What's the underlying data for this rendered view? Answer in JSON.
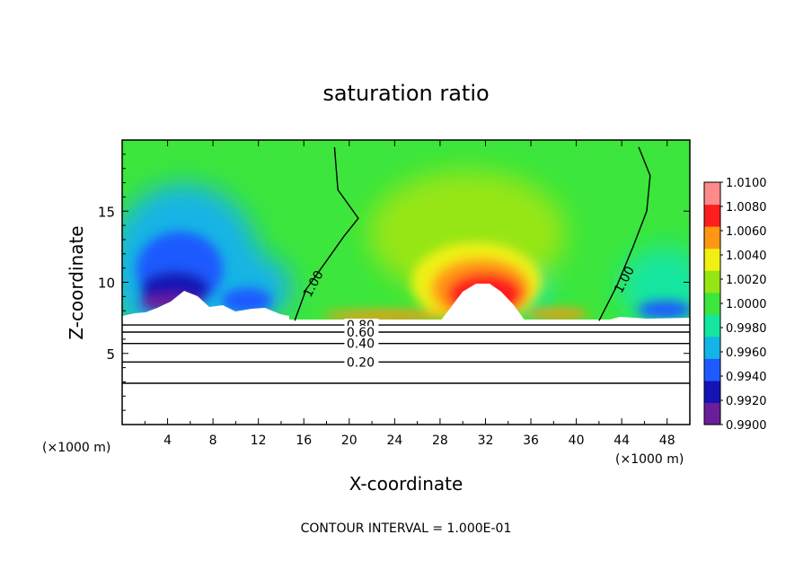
{
  "chart_data": {
    "type": "heatmap",
    "title": "saturation ratio",
    "xlabel": "X-coordinate",
    "ylabel": "Z-coordinate",
    "x_unit": "(×1000 m)",
    "y_unit": "(×1000 m)",
    "xlim": [
      0,
      50
    ],
    "ylim": [
      0,
      20
    ],
    "x_ticks": [
      4,
      8,
      12,
      16,
      20,
      24,
      28,
      32,
      36,
      40,
      44,
      48
    ],
    "y_ticks": [
      5,
      10,
      15
    ],
    "footer": "CONTOUR INTERVAL = 1.000E-01",
    "colorbar": {
      "levels": [
        0.99,
        0.992,
        0.994,
        0.996,
        0.998,
        1.0,
        1.002,
        1.004,
        1.006,
        1.008,
        1.01
      ],
      "labels": [
        "0.9900",
        "0.9920",
        "0.9940",
        "0.9960",
        "0.9980",
        "1.0000",
        "1.0020",
        "1.0040",
        "1.0060",
        "1.0080",
        "1.0100"
      ],
      "colors": [
        "#6a1e9a",
        "#1414b4",
        "#1e5aff",
        "#14b4e6",
        "#14e6a0",
        "#3ce63c",
        "#96e614",
        "#f0f014",
        "#ff9614",
        "#ff1e1e",
        "#ff8a8a"
      ]
    },
    "field_features": [
      {
        "description": "dry region",
        "x": 6,
        "z": 11,
        "value": 0.991
      },
      {
        "description": "dry region",
        "x": 47,
        "z": 9,
        "value": 0.995
      },
      {
        "description": "supersaturated region",
        "x": 32,
        "z": 9.5,
        "value": 1.007
      }
    ],
    "contours": [
      {
        "label": "1.00",
        "points": [
          [
            15.2,
            7.3
          ],
          [
            16.2,
            9.5
          ],
          [
            18,
            11.5
          ],
          [
            19.5,
            13.2
          ],
          [
            20.8,
            14.5
          ],
          [
            19,
            16.5
          ],
          [
            18.7,
            19.5
          ]
        ]
      },
      {
        "label": "1.00",
        "points": [
          [
            42,
            7.3
          ],
          [
            43.6,
            9.8
          ],
          [
            45,
            12.5
          ],
          [
            46.2,
            15
          ],
          [
            46.5,
            17.5
          ],
          [
            45.5,
            19.5
          ]
        ]
      },
      {
        "label": "0.80",
        "points": [
          [
            0,
            7.0
          ],
          [
            25,
            7.0
          ],
          [
            50,
            7.0
          ]
        ]
      },
      {
        "label": "0.60",
        "points": [
          [
            0,
            6.5
          ],
          [
            25,
            6.5
          ],
          [
            50,
            6.5
          ]
        ]
      },
      {
        "label": "0.40",
        "points": [
          [
            0,
            5.7
          ],
          [
            25,
            5.7
          ],
          [
            50,
            5.7
          ]
        ]
      },
      {
        "label": "0.20",
        "points": [
          [
            0,
            4.4
          ],
          [
            25,
            4.4
          ],
          [
            50,
            4.4
          ]
        ]
      },
      {
        "label": "",
        "points": [
          [
            0,
            2.9
          ],
          [
            25,
            2.9
          ],
          [
            50,
            2.9
          ]
        ]
      }
    ]
  }
}
